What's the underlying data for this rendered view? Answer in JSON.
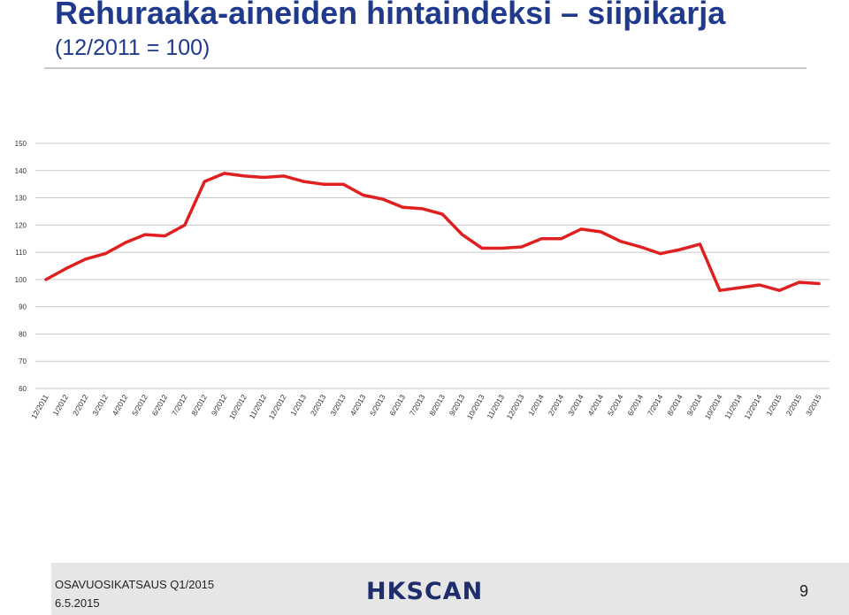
{
  "slide": {
    "title": "Rehuraaka-aineiden hintaindeksi – siipikarja",
    "subtitle": "(12/2011 = 100)"
  },
  "footer": {
    "report": "OSAVUOSIKATSAUS Q1/2015",
    "date": "6.5.2015",
    "logo": "HKSCAN",
    "page": "9"
  },
  "colors": {
    "line": "#e02020",
    "title": "#1f3a8c",
    "grid": "#c8c8c8",
    "footer_bg": "#e6e6e6"
  },
  "chart_data": {
    "type": "line",
    "title": "",
    "xlabel": "",
    "ylabel": "",
    "ylim": [
      60,
      150
    ],
    "yticks": [
      60,
      70,
      80,
      90,
      100,
      110,
      120,
      130,
      140,
      150
    ],
    "grid": true,
    "legend": "none",
    "categories": [
      "12/2011",
      "1/2012",
      "2/2012",
      "3/2012",
      "4/2012",
      "5/2012",
      "6/2012",
      "7/2012",
      "8/2012",
      "9/2012",
      "10/2012",
      "11/2012",
      "12/2012",
      "1/2013",
      "2/2013",
      "3/2013",
      "4/2013",
      "5/2013",
      "6/2013",
      "7/2013",
      "8/2013",
      "9/2013",
      "10/2013",
      "11/2013",
      "12/2013",
      "1/2014",
      "2/2014",
      "3/2014",
      "4/2014",
      "5/2014",
      "6/2014",
      "7/2014",
      "8/2014",
      "9/2014",
      "10/2014",
      "11/2014",
      "12/2014",
      "1/2015",
      "2/2015",
      "3/2015"
    ],
    "series": [
      {
        "values": [
          100,
          104,
          107.5,
          109.5,
          113.5,
          116.5,
          116,
          120,
          136,
          139,
          138,
          137.5,
          138,
          136,
          135,
          135,
          131,
          129.5,
          126.5,
          126,
          124,
          116.5,
          111.5,
          111.5,
          112,
          115,
          115,
          118.5,
          117.5,
          114,
          112,
          109.5,
          111,
          113,
          96,
          97,
          98,
          96,
          99,
          98.5
        ]
      }
    ]
  }
}
